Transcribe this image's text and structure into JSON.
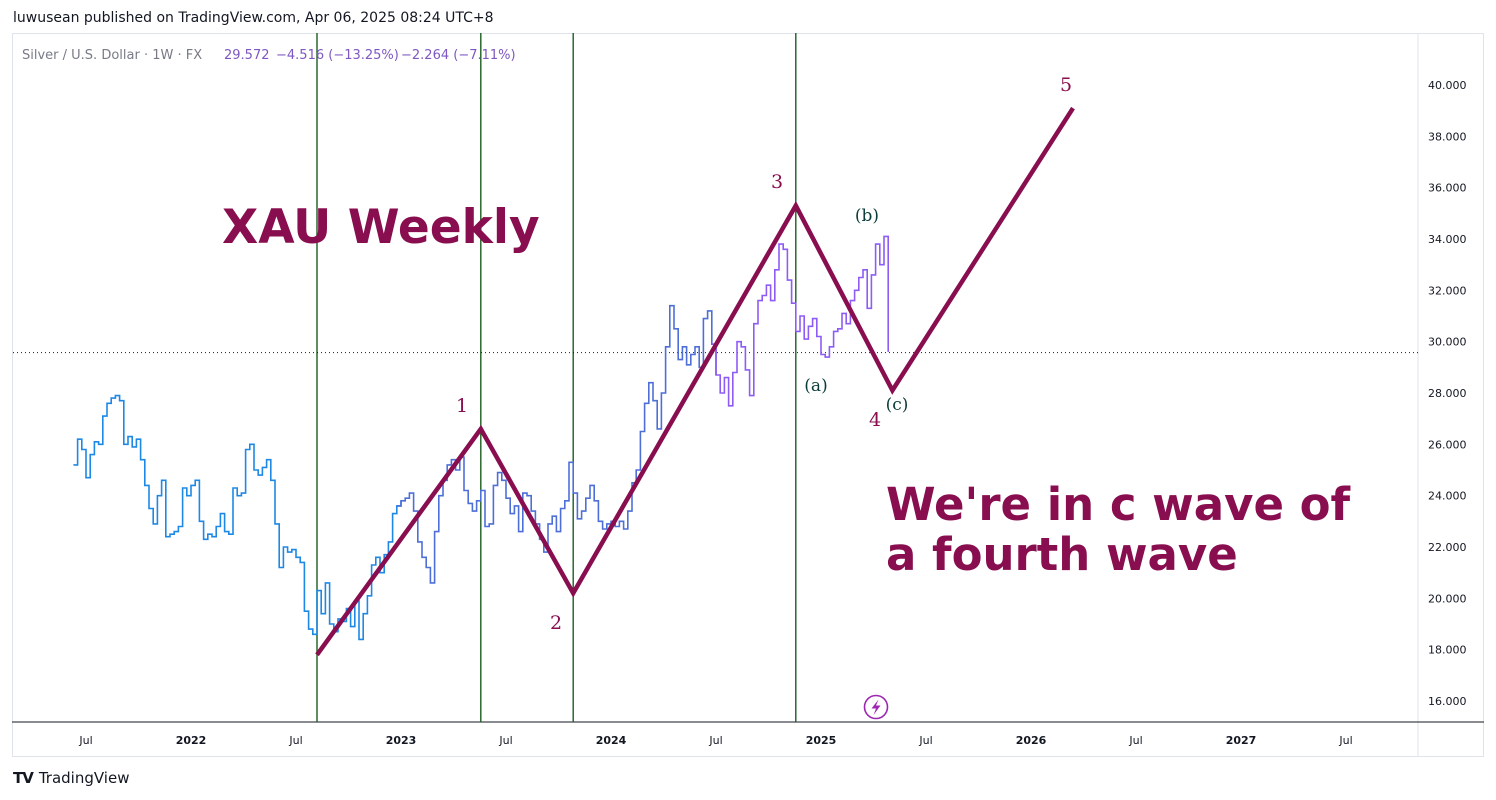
{
  "header": {
    "published_line": "luwusean published on TradingView.com, Apr 06, 2025 08:24 UTC+8"
  },
  "legend": {
    "symbol": "Silver / U.S. Dollar · 1W · FX",
    "last": "29.572",
    "change": "−4.516 (−13.25%)",
    "change2": "−2.264 (−7.11%)"
  },
  "annotations": {
    "title": "XAU Weekly",
    "note_line1": "We're in c wave of",
    "note_line2": "a fourth wave",
    "wave_1": "1",
    "wave_2": "2",
    "wave_3": "3",
    "wave_4": "4",
    "wave_5": "5",
    "sub_a": "(a)",
    "sub_b": "(b)",
    "sub_c": "(c)"
  },
  "footer": {
    "brand": "TradingView",
    "logo": "TV"
  },
  "colors": {
    "wave": "#880e4f",
    "price_early": "#1e88e5",
    "price_mid": "#4e6fd8",
    "price_late": "#8e5cf5",
    "vertical_line": "#1b5e20",
    "sublabel": "#0b3d3a",
    "legend_value": "#7e57c2"
  },
  "chart_data": {
    "type": "line",
    "series_style": "step",
    "y_axis": {
      "min": 15.0,
      "max": 42.0,
      "ticks": [
        "16.000",
        "18.000",
        "20.000",
        "22.000",
        "24.000",
        "26.000",
        "28.000",
        "30.000",
        "32.000",
        "34.000",
        "36.000",
        "38.000",
        "40.000"
      ]
    },
    "x_axis": {
      "ticks": [
        "Jul",
        "2022",
        "Jul",
        "2023",
        "Jul",
        "2024",
        "Jul",
        "2025",
        "Jul",
        "2026",
        "Jul",
        "2027",
        "Jul"
      ]
    },
    "last_price_line": 29.572,
    "price": [
      [
        2021.44,
        25.2
      ],
      [
        2021.46,
        26.2
      ],
      [
        2021.48,
        25.8
      ],
      [
        2021.5,
        24.7
      ],
      [
        2021.52,
        25.6
      ],
      [
        2021.54,
        26.1
      ],
      [
        2021.56,
        26.0
      ],
      [
        2021.58,
        27.1
      ],
      [
        2021.6,
        27.6
      ],
      [
        2021.62,
        27.8
      ],
      [
        2021.64,
        27.9
      ],
      [
        2021.66,
        27.7
      ],
      [
        2021.68,
        26.0
      ],
      [
        2021.7,
        26.3
      ],
      [
        2021.72,
        25.9
      ],
      [
        2021.74,
        26.2
      ],
      [
        2021.76,
        25.4
      ],
      [
        2021.78,
        24.4
      ],
      [
        2021.8,
        23.5
      ],
      [
        2021.82,
        22.9
      ],
      [
        2021.84,
        24.0
      ],
      [
        2021.86,
        24.6
      ],
      [
        2021.88,
        22.4
      ],
      [
        2021.9,
        22.5
      ],
      [
        2021.92,
        22.6
      ],
      [
        2021.94,
        22.8
      ],
      [
        2021.96,
        24.3
      ],
      [
        2021.98,
        24.0
      ],
      [
        2022.0,
        24.4
      ],
      [
        2022.02,
        24.6
      ],
      [
        2022.04,
        23.0
      ],
      [
        2022.06,
        22.3
      ],
      [
        2022.08,
        22.5
      ],
      [
        2022.1,
        22.4
      ],
      [
        2022.12,
        22.8
      ],
      [
        2022.14,
        23.3
      ],
      [
        2022.16,
        22.6
      ],
      [
        2022.18,
        22.5
      ],
      [
        2022.2,
        24.3
      ],
      [
        2022.22,
        24.0
      ],
      [
        2022.24,
        24.1
      ],
      [
        2022.26,
        25.8
      ],
      [
        2022.28,
        26.0
      ],
      [
        2022.3,
        25.0
      ],
      [
        2022.32,
        24.8
      ],
      [
        2022.34,
        25.1
      ],
      [
        2022.36,
        25.4
      ],
      [
        2022.38,
        24.6
      ],
      [
        2022.4,
        22.9
      ],
      [
        2022.42,
        21.2
      ],
      [
        2022.44,
        22.0
      ],
      [
        2022.46,
        21.8
      ],
      [
        2022.48,
        21.9
      ],
      [
        2022.5,
        21.6
      ],
      [
        2022.52,
        21.4
      ],
      [
        2022.54,
        19.5
      ],
      [
        2022.56,
        18.8
      ],
      [
        2022.58,
        18.6
      ],
      [
        2022.6,
        20.3
      ],
      [
        2022.62,
        19.4
      ],
      [
        2022.64,
        20.6
      ],
      [
        2022.66,
        19.0
      ],
      [
        2022.68,
        18.7
      ],
      [
        2022.7,
        19.2
      ],
      [
        2022.72,
        19.1
      ],
      [
        2022.74,
        19.6
      ],
      [
        2022.76,
        18.9
      ],
      [
        2022.78,
        19.9
      ],
      [
        2022.8,
        18.4
      ],
      [
        2022.82,
        19.4
      ],
      [
        2022.84,
        20.1
      ],
      [
        2022.86,
        21.3
      ],
      [
        2022.88,
        21.6
      ],
      [
        2022.9,
        21.0
      ],
      [
        2022.92,
        21.7
      ],
      [
        2022.94,
        22.2
      ],
      [
        2022.96,
        23.3
      ],
      [
        2022.98,
        23.6
      ],
      [
        2023.0,
        23.8
      ],
      [
        2023.02,
        23.9
      ],
      [
        2023.04,
        24.1
      ],
      [
        2023.06,
        23.4
      ],
      [
        2023.08,
        22.2
      ],
      [
        2023.1,
        21.6
      ],
      [
        2023.12,
        21.2
      ],
      [
        2023.14,
        20.6
      ],
      [
        2023.16,
        22.6
      ],
      [
        2023.18,
        24.0
      ],
      [
        2023.2,
        24.6
      ],
      [
        2023.22,
        25.2
      ],
      [
        2023.24,
        25.4
      ],
      [
        2023.26,
        25.0
      ],
      [
        2023.28,
        25.5
      ],
      [
        2023.3,
        24.2
      ],
      [
        2023.32,
        23.7
      ],
      [
        2023.34,
        23.4
      ],
      [
        2023.36,
        23.8
      ],
      [
        2023.38,
        24.2
      ],
      [
        2023.4,
        22.8
      ],
      [
        2023.42,
        22.9
      ],
      [
        2023.44,
        24.4
      ],
      [
        2023.46,
        24.9
      ],
      [
        2023.48,
        24.6
      ],
      [
        2023.5,
        23.9
      ],
      [
        2023.52,
        23.3
      ],
      [
        2023.54,
        23.6
      ],
      [
        2023.56,
        22.6
      ],
      [
        2023.58,
        24.1
      ],
      [
        2023.6,
        24.0
      ],
      [
        2023.62,
        23.4
      ],
      [
        2023.64,
        22.9
      ],
      [
        2023.66,
        22.3
      ],
      [
        2023.68,
        21.8
      ],
      [
        2023.7,
        22.9
      ],
      [
        2023.72,
        23.2
      ],
      [
        2023.74,
        22.6
      ],
      [
        2023.76,
        23.5
      ],
      [
        2023.78,
        23.8
      ],
      [
        2023.8,
        25.3
      ],
      [
        2023.82,
        24.1
      ],
      [
        2023.84,
        23.1
      ],
      [
        2023.86,
        23.4
      ],
      [
        2023.88,
        23.9
      ],
      [
        2023.9,
        24.4
      ],
      [
        2023.92,
        23.8
      ],
      [
        2023.94,
        23.0
      ],
      [
        2023.96,
        22.7
      ],
      [
        2023.98,
        22.9
      ],
      [
        2024.0,
        23.0
      ],
      [
        2024.02,
        22.8
      ],
      [
        2024.04,
        23.0
      ],
      [
        2024.06,
        22.7
      ],
      [
        2024.08,
        23.4
      ],
      [
        2024.1,
        24.5
      ],
      [
        2024.12,
        25.0
      ],
      [
        2024.14,
        26.5
      ],
      [
        2024.16,
        27.6
      ],
      [
        2024.18,
        28.4
      ],
      [
        2024.2,
        27.7
      ],
      [
        2024.22,
        26.6
      ],
      [
        2024.24,
        28.0
      ],
      [
        2024.26,
        29.8
      ],
      [
        2024.28,
        31.4
      ],
      [
        2024.3,
        30.5
      ],
      [
        2024.32,
        29.3
      ],
      [
        2024.34,
        29.8
      ],
      [
        2024.36,
        29.1
      ],
      [
        2024.38,
        29.5
      ],
      [
        2024.4,
        29.8
      ],
      [
        2024.42,
        29.0
      ],
      [
        2024.44,
        30.9
      ],
      [
        2024.46,
        31.2
      ],
      [
        2024.48,
        29.9
      ],
      [
        2024.5,
        28.7
      ],
      [
        2024.52,
        28.0
      ],
      [
        2024.54,
        28.6
      ],
      [
        2024.56,
        27.5
      ],
      [
        2024.58,
        28.8
      ],
      [
        2024.6,
        30.0
      ],
      [
        2024.62,
        29.8
      ],
      [
        2024.64,
        28.9
      ],
      [
        2024.66,
        27.9
      ],
      [
        2024.68,
        30.7
      ],
      [
        2024.7,
        31.6
      ],
      [
        2024.72,
        31.8
      ],
      [
        2024.74,
        32.2
      ],
      [
        2024.76,
        31.6
      ],
      [
        2024.78,
        32.8
      ],
      [
        2024.8,
        33.8
      ],
      [
        2024.82,
        33.6
      ],
      [
        2024.84,
        32.4
      ],
      [
        2024.86,
        31.5
      ],
      [
        2024.88,
        30.4
      ],
      [
        2024.9,
        31.0
      ],
      [
        2024.92,
        30.1
      ],
      [
        2024.94,
        30.6
      ],
      [
        2024.96,
        30.9
      ],
      [
        2024.98,
        30.2
      ],
      [
        2025.0,
        29.5
      ],
      [
        2025.02,
        29.4
      ],
      [
        2025.04,
        29.8
      ],
      [
        2025.06,
        30.4
      ],
      [
        2025.08,
        30.5
      ],
      [
        2025.1,
        31.1
      ],
      [
        2025.12,
        30.7
      ],
      [
        2025.14,
        31.6
      ],
      [
        2025.16,
        32.0
      ],
      [
        2025.18,
        32.5
      ],
      [
        2025.2,
        32.8
      ],
      [
        2025.22,
        31.3
      ],
      [
        2025.24,
        32.6
      ],
      [
        2025.26,
        33.8
      ],
      [
        2025.28,
        33.0
      ],
      [
        2025.3,
        34.1
      ],
      [
        2025.32,
        29.6
      ]
    ],
    "waves": [
      [
        2022.6,
        17.8
      ],
      [
        2023.38,
        26.6
      ],
      [
        2023.82,
        20.2
      ],
      [
        2024.88,
        35.3
      ],
      [
        2025.34,
        28.1
      ],
      [
        2026.2,
        39.1
      ]
    ],
    "vertical_markers": [
      2022.6,
      2023.38,
      2023.82,
      2024.88
    ]
  }
}
